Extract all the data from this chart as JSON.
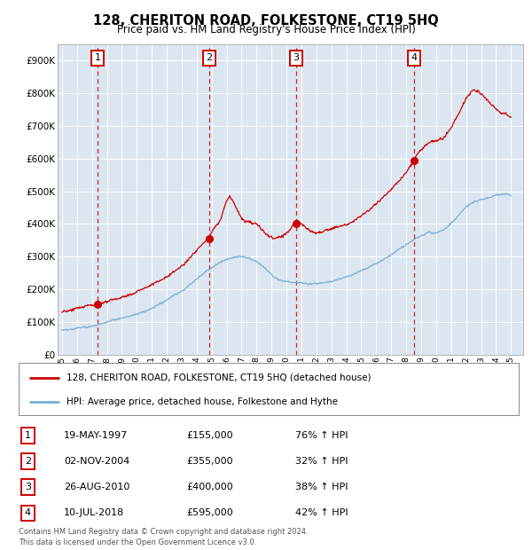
{
  "title": "128, CHERITON ROAD, FOLKESTONE, CT19 5HQ",
  "subtitle": "Price paid vs. HM Land Registry's House Price Index (HPI)",
  "bg_color": "#dce6f0",
  "ylim": [
    0,
    950000
  ],
  "yticks": [
    0,
    100000,
    200000,
    300000,
    400000,
    500000,
    600000,
    700000,
    800000,
    900000
  ],
  "ytick_labels": [
    "£0",
    "£100K",
    "£200K",
    "£300K",
    "£400K",
    "£500K",
    "£600K",
    "£700K",
    "£800K",
    "£900K"
  ],
  "xlim_start": 1994.7,
  "xlim_end": 2025.8,
  "sale_dates": [
    1997.38,
    2004.84,
    2010.65,
    2018.52
  ],
  "sale_prices": [
    155000,
    355000,
    400000,
    595000
  ],
  "sale_labels": [
    "1",
    "2",
    "3",
    "4"
  ],
  "legend_line1": "128, CHERITON ROAD, FOLKESTONE, CT19 5HQ (detached house)",
  "legend_line2": "HPI: Average price, detached house, Folkestone and Hythe",
  "table_rows": [
    [
      "1",
      "19-MAY-1997",
      "£155,000",
      "76% ↑ HPI"
    ],
    [
      "2",
      "02-NOV-2004",
      "£355,000",
      "32% ↑ HPI"
    ],
    [
      "3",
      "26-AUG-2010",
      "£400,000",
      "38% ↑ HPI"
    ],
    [
      "4",
      "10-JUL-2018",
      "£595,000",
      "42% ↑ HPI"
    ]
  ],
  "footer": "Contains HM Land Registry data © Crown copyright and database right 2024.\nThis data is licensed under the Open Government Licence v3.0.",
  "red_color": "#cc0000",
  "blue_color": "#7aadd4",
  "grid_color": "#ffffff",
  "hpi_anchors_x": [
    1995.0,
    1995.5,
    1996.0,
    1996.5,
    1997.0,
    1997.5,
    1998.0,
    1998.5,
    1999.0,
    1999.5,
    2000.0,
    2000.5,
    2001.0,
    2001.5,
    2002.0,
    2002.5,
    2003.0,
    2003.5,
    2004.0,
    2004.5,
    2005.0,
    2005.5,
    2006.0,
    2006.5,
    2007.0,
    2007.5,
    2008.0,
    2008.5,
    2009.0,
    2009.5,
    2010.0,
    2010.5,
    2011.0,
    2011.5,
    2012.0,
    2012.5,
    2013.0,
    2013.5,
    2014.0,
    2014.5,
    2015.0,
    2015.5,
    2016.0,
    2016.5,
    2017.0,
    2017.5,
    2018.0,
    2018.5,
    2019.0,
    2019.5,
    2020.0,
    2020.5,
    2021.0,
    2021.5,
    2022.0,
    2022.5,
    2023.0,
    2023.5,
    2024.0,
    2024.5,
    2025.0
  ],
  "hpi_anchors_y": [
    75000,
    77000,
    80000,
    84000,
    88000,
    93000,
    98000,
    104000,
    110000,
    116000,
    122000,
    130000,
    140000,
    152000,
    165000,
    178000,
    192000,
    210000,
    228000,
    248000,
    265000,
    278000,
    290000,
    298000,
    300000,
    295000,
    285000,
    265000,
    245000,
    230000,
    225000,
    222000,
    220000,
    218000,
    220000,
    222000,
    228000,
    235000,
    242000,
    252000,
    263000,
    273000,
    285000,
    298000,
    312000,
    328000,
    342000,
    355000,
    368000,
    378000,
    375000,
    385000,
    405000,
    430000,
    455000,
    470000,
    478000,
    482000,
    490000,
    492000,
    488000
  ],
  "price_anchors_x": [
    1995.0,
    1995.3,
    1995.6,
    1995.9,
    1996.2,
    1996.5,
    1996.8,
    1997.1,
    1997.38,
    1997.7,
    1998.0,
    1998.5,
    1999.0,
    1999.5,
    2000.0,
    2000.5,
    2001.0,
    2001.5,
    2002.0,
    2002.5,
    2003.0,
    2003.5,
    2004.0,
    2004.5,
    2004.84,
    2005.0,
    2005.3,
    2005.6,
    2006.0,
    2006.2,
    2006.4,
    2006.7,
    2007.0,
    2007.3,
    2007.6,
    2008.0,
    2008.4,
    2008.8,
    2009.2,
    2009.6,
    2010.0,
    2010.3,
    2010.65,
    2010.9,
    2011.2,
    2011.6,
    2012.0,
    2012.5,
    2013.0,
    2013.5,
    2014.0,
    2014.5,
    2015.0,
    2015.5,
    2016.0,
    2016.5,
    2017.0,
    2017.5,
    2018.0,
    2018.52,
    2018.8,
    2019.2,
    2019.6,
    2020.0,
    2020.5,
    2021.0,
    2021.5,
    2022.0,
    2022.4,
    2022.8,
    2023.0,
    2023.3,
    2023.7,
    2024.0,
    2024.3,
    2024.6,
    2025.0
  ],
  "price_anchors_y": [
    130000,
    133000,
    136000,
    140000,
    144000,
    148000,
    152000,
    154000,
    155000,
    158000,
    162000,
    168000,
    175000,
    183000,
    192000,
    200000,
    210000,
    222000,
    236000,
    252000,
    270000,
    292000,
    315000,
    338000,
    355000,
    368000,
    385000,
    405000,
    460000,
    475000,
    460000,
    430000,
    400000,
    390000,
    385000,
    380000,
    365000,
    348000,
    340000,
    345000,
    358000,
    368000,
    400000,
    392000,
    378000,
    365000,
    358000,
    362000,
    370000,
    378000,
    388000,
    400000,
    415000,
    432000,
    452000,
    475000,
    500000,
    528000,
    558000,
    595000,
    622000,
    642000,
    655000,
    660000,
    668000,
    700000,
    740000,
    790000,
    810000,
    808000,
    800000,
    790000,
    770000,
    755000,
    745000,
    738000,
    725000
  ]
}
